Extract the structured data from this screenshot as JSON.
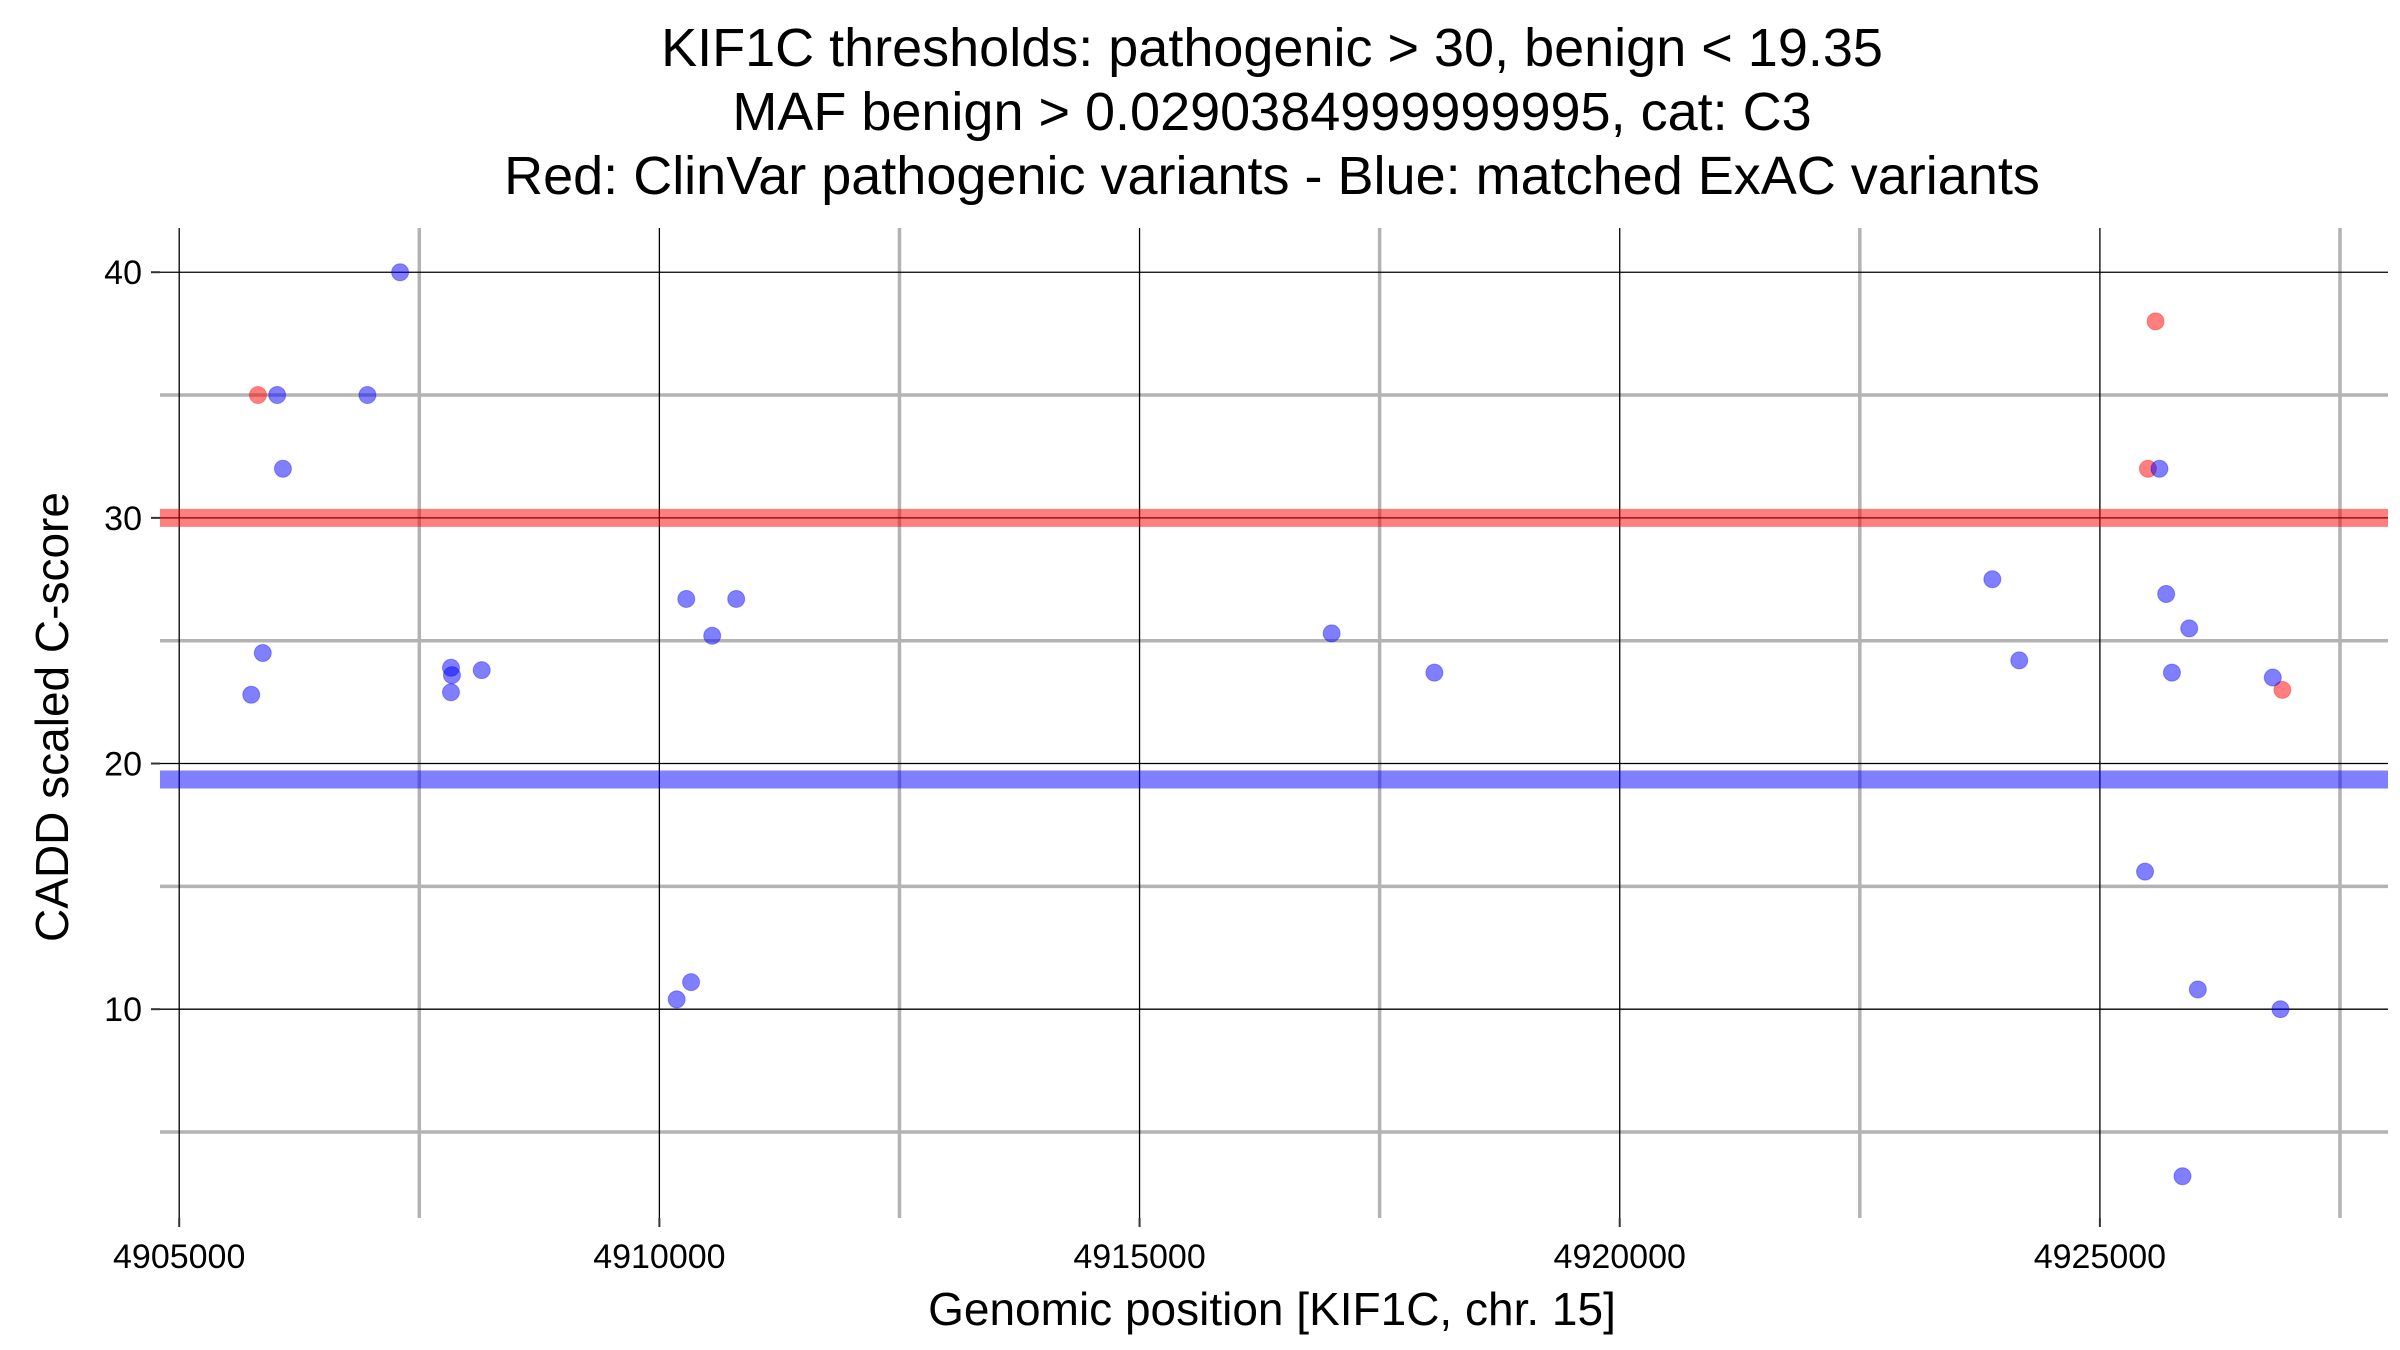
{
  "chart_data": {
    "type": "scatter",
    "title_lines": [
      "KIF1C thresholds: pathogenic > 30, benign < 19.35",
      "MAF benign > 0.0290384999999995, cat: C3",
      "Red: ClinVar pathogenic variants - Blue: matched ExAC variants"
    ],
    "xlabel": "Genomic position [KIF1C, chr. 15]",
    "ylabel": "CADD scaled C-score",
    "xlim": [
      4904800,
      4928000
    ],
    "ylim": [
      1.5,
      41.8
    ],
    "x_major_ticks": [
      4905000,
      4910000,
      4915000,
      4920000,
      4925000
    ],
    "x_tick_labels": [
      "4905000",
      "4910000",
      "4915000",
      "4920000",
      "4925000"
    ],
    "x_minor_ticks": [
      4907500,
      4912500,
      4917500,
      4922500,
      4927500
    ],
    "y_major_ticks": [
      10,
      20,
      30,
      40
    ],
    "y_tick_labels": [
      "10",
      "20",
      "30",
      "40"
    ],
    "y_minor_ticks": [
      5,
      15,
      25,
      35
    ],
    "grid": true,
    "thresholds": [
      {
        "name": "pathogenic",
        "value": 30,
        "color": "#ff0000"
      },
      {
        "name": "benign",
        "value": 19.35,
        "color": "#0000ff"
      }
    ],
    "series": [
      {
        "name": "ClinVar pathogenic variants",
        "color": "#ff0000",
        "points": [
          {
            "x": 4905820,
            "y": 35.0
          },
          {
            "x": 4925500,
            "y": 32.0
          },
          {
            "x": 4925580,
            "y": 38.0
          },
          {
            "x": 4926900,
            "y": 23.0
          }
        ]
      },
      {
        "name": "matched ExAC variants",
        "color": "#0000ff",
        "points": [
          {
            "x": 4905750,
            "y": 22.8
          },
          {
            "x": 4905870,
            "y": 24.5
          },
          {
            "x": 4906020,
            "y": 35.0
          },
          {
            "x": 4906080,
            "y": 32.0
          },
          {
            "x": 4906960,
            "y": 35.0
          },
          {
            "x": 4907300,
            "y": 40.0
          },
          {
            "x": 4907830,
            "y": 23.9
          },
          {
            "x": 4907840,
            "y": 23.6
          },
          {
            "x": 4907830,
            "y": 22.9
          },
          {
            "x": 4908150,
            "y": 23.8
          },
          {
            "x": 4910180,
            "y": 10.4
          },
          {
            "x": 4910280,
            "y": 26.7
          },
          {
            "x": 4910330,
            "y": 11.1
          },
          {
            "x": 4910550,
            "y": 25.2
          },
          {
            "x": 4910800,
            "y": 26.7
          },
          {
            "x": 4917000,
            "y": 25.3
          },
          {
            "x": 4918070,
            "y": 23.7
          },
          {
            "x": 4923880,
            "y": 27.5
          },
          {
            "x": 4924160,
            "y": 24.2
          },
          {
            "x": 4925470,
            "y": 15.6
          },
          {
            "x": 4925620,
            "y": 32.0
          },
          {
            "x": 4925690,
            "y": 26.9
          },
          {
            "x": 4925750,
            "y": 23.7
          },
          {
            "x": 4925860,
            "y": 3.2
          },
          {
            "x": 4925930,
            "y": 25.5
          },
          {
            "x": 4926020,
            "y": 10.8
          },
          {
            "x": 4926800,
            "y": 23.5
          },
          {
            "x": 4926880,
            "y": 10.0
          }
        ]
      }
    ]
  }
}
